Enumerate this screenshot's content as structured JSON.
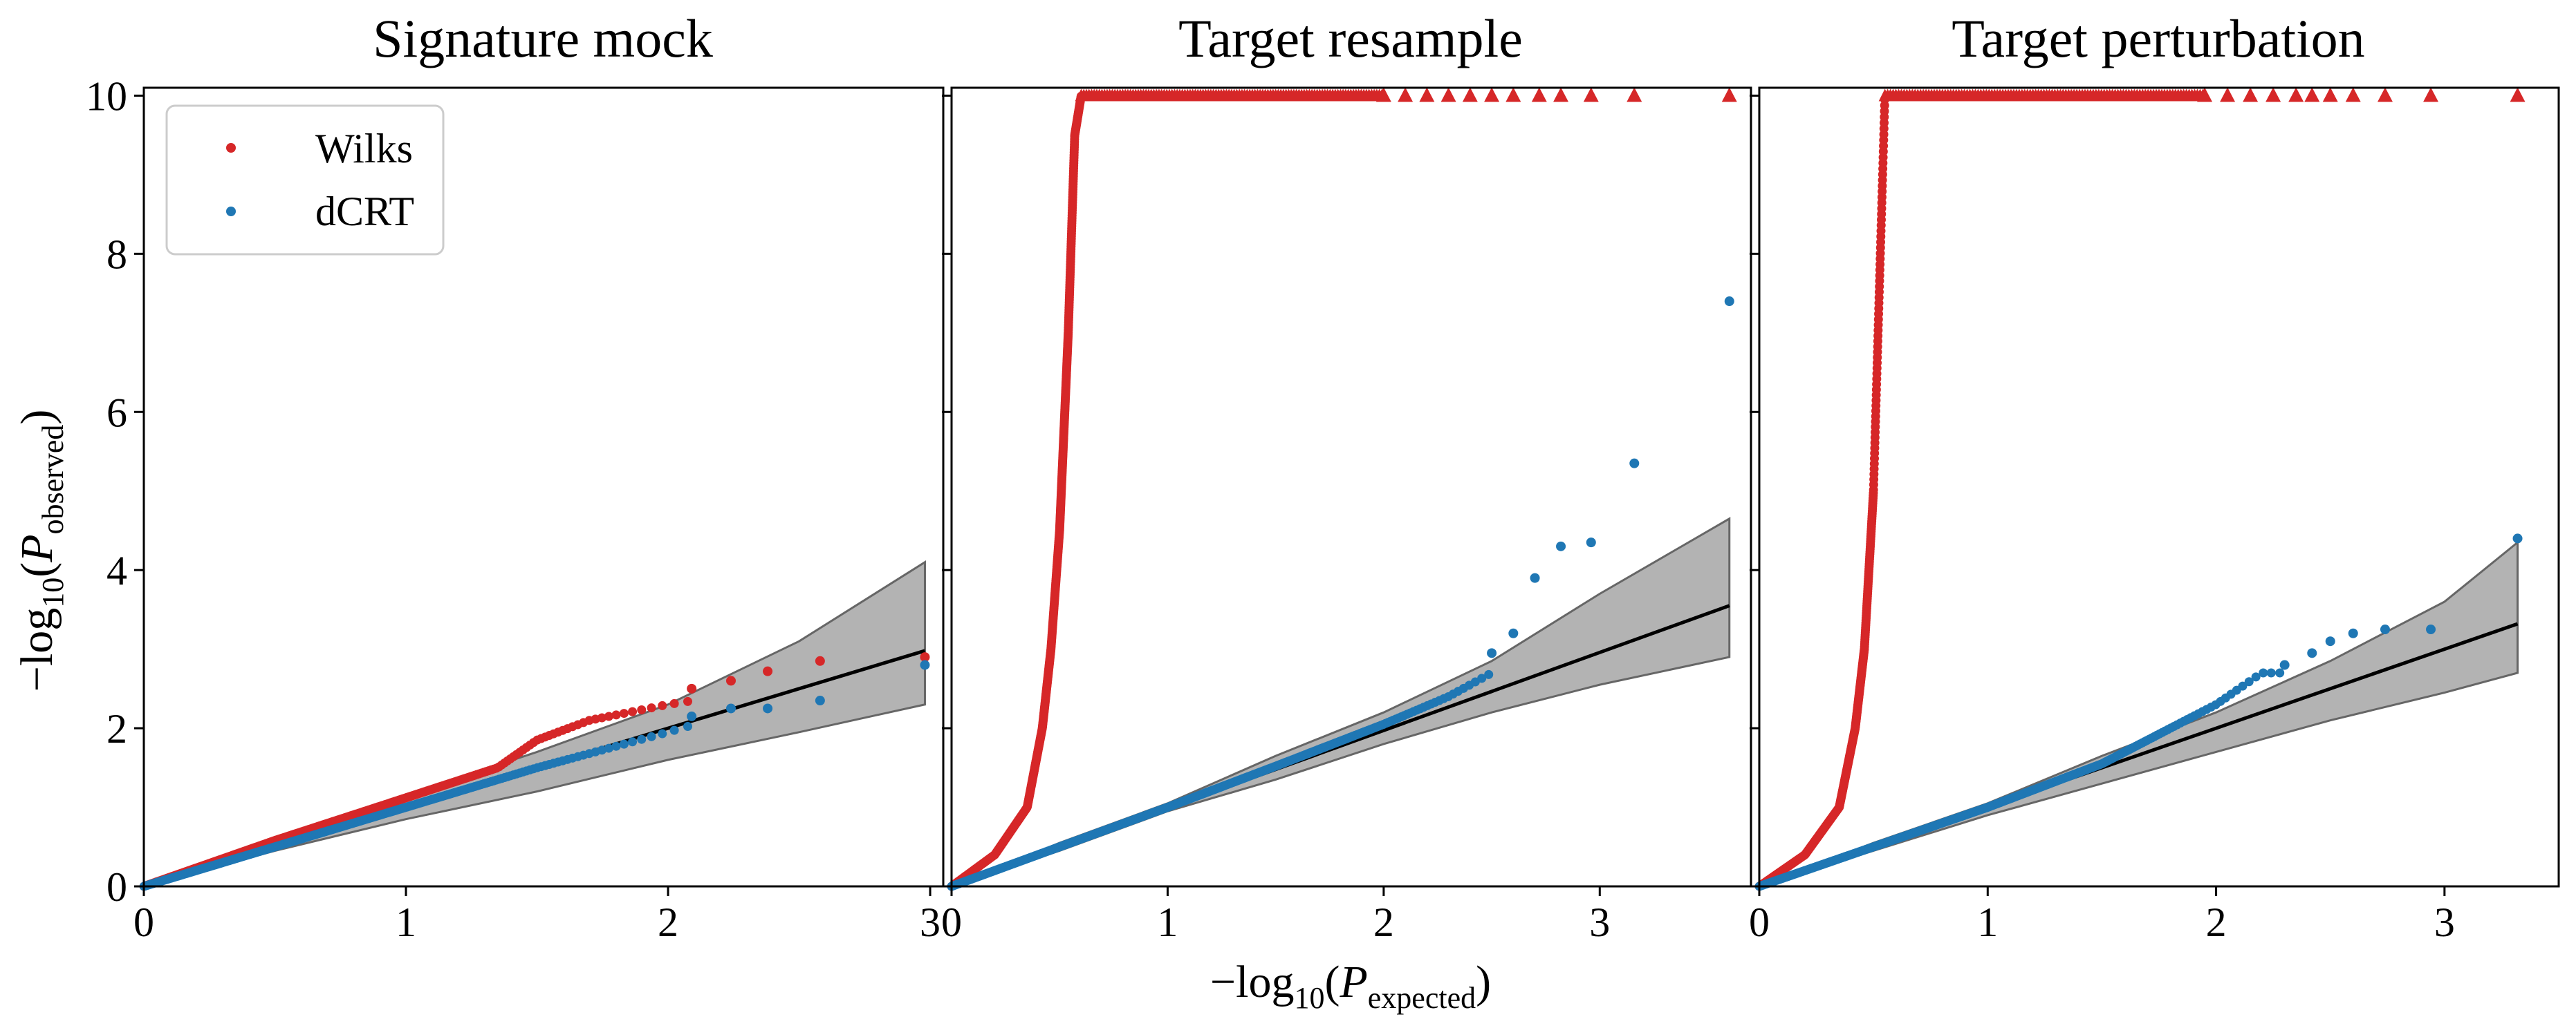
{
  "figure": {
    "ylabel": {
      "prefix": "−log",
      "sub": "10",
      "open": "(",
      "var": "P",
      "varsub": "observed",
      "close": ")"
    },
    "xlabel": {
      "prefix": "−log",
      "sub": "10",
      "open": "(",
      "var": "P",
      "varsub": "expected",
      "close": ")"
    },
    "legend": {
      "placement": "upper-left of first panel",
      "items": [
        {
          "label": "Wilks",
          "color": "#d62728"
        },
        {
          "label": "dCRT",
          "color": "#1f77b4"
        }
      ]
    },
    "colors": {
      "wilks": "#d62728",
      "dcrt": "#1f77b4",
      "band": "#808080",
      "reference_line": "#000000"
    }
  },
  "chart_data": [
    {
      "type": "scatter",
      "title": "Signature mock",
      "xlim": [
        0,
        3.05
      ],
      "ylim": [
        0,
        10.1
      ],
      "xticks": [
        "0",
        "1",
        "2",
        "3"
      ],
      "yticks": [
        "0",
        "2",
        "4",
        "6",
        "8",
        "10"
      ],
      "x_max": 2.98,
      "cap": 10,
      "n_points": 950,
      "band_upper": [
        [
          0,
          0
        ],
        [
          0.5,
          0.6
        ],
        [
          1.0,
          1.15
        ],
        [
          1.5,
          1.7
        ],
        [
          2.0,
          2.3
        ],
        [
          2.5,
          3.1
        ],
        [
          2.98,
          4.1
        ]
      ],
      "band_lower": [
        [
          0,
          0
        ],
        [
          0.5,
          0.45
        ],
        [
          1.0,
          0.85
        ],
        [
          1.5,
          1.2
        ],
        [
          2.0,
          1.6
        ],
        [
          2.5,
          1.95
        ],
        [
          2.98,
          2.3
        ]
      ],
      "line_end": [
        2.98,
        2.98
      ],
      "series": [
        {
          "name": "Wilks",
          "shape": [
            [
              0,
              0
            ],
            [
              0.5,
              0.58
            ],
            [
              1.0,
              1.12
            ],
            [
              1.35,
              1.5
            ],
            [
              1.5,
              1.85
            ],
            [
              1.7,
              2.1
            ],
            [
              2.0,
              2.3
            ],
            [
              2.98,
              2.8
            ]
          ],
          "tail": [
            [
              2.09,
              2.5
            ],
            [
              2.24,
              2.6
            ],
            [
              2.38,
              2.72
            ],
            [
              2.58,
              2.85
            ],
            [
              2.98,
              2.9
            ]
          ]
        },
        {
          "name": "dCRT",
          "shape": [
            [
              0,
              0
            ],
            [
              0.5,
              0.5
            ],
            [
              1.0,
              1.0
            ],
            [
              1.5,
              1.5
            ],
            [
              2.0,
              1.95
            ],
            [
              2.98,
              2.9
            ]
          ],
          "tail": [
            [
              2.09,
              2.15
            ],
            [
              2.24,
              2.25
            ],
            [
              2.38,
              2.25
            ],
            [
              2.58,
              2.35
            ],
            [
              2.98,
              2.8
            ]
          ]
        }
      ]
    },
    {
      "type": "scatter",
      "title": "Target resample",
      "xlim": [
        0,
        3.7
      ],
      "ylim": [
        0,
        10.1
      ],
      "xticks": [
        "0",
        "1",
        "2",
        "3"
      ],
      "yticks": [
        "0",
        "2",
        "4",
        "6",
        "8",
        "10"
      ],
      "x_max": 3.6,
      "cap": 10,
      "n_points": 3980,
      "band_upper": [
        [
          0,
          0
        ],
        [
          0.5,
          0.55
        ],
        [
          1.0,
          1.05
        ],
        [
          1.5,
          1.65
        ],
        [
          2.0,
          2.2
        ],
        [
          2.5,
          2.85
        ],
        [
          3.0,
          3.7
        ],
        [
          3.6,
          4.65
        ]
      ],
      "band_lower": [
        [
          0,
          0
        ],
        [
          0.5,
          0.45
        ],
        [
          1.0,
          0.95
        ],
        [
          1.5,
          1.35
        ],
        [
          2.0,
          1.8
        ],
        [
          2.5,
          2.2
        ],
        [
          3.0,
          2.55
        ],
        [
          3.6,
          2.9
        ]
      ],
      "line_end": [
        3.6,
        3.55
      ],
      "series": [
        {
          "name": "Wilks",
          "shape": [
            [
              0,
              0
            ],
            [
              0.2,
              0.4
            ],
            [
              0.35,
              1.0
            ],
            [
              0.42,
              2.0
            ],
            [
              0.46,
              3.0
            ],
            [
              0.5,
              4.5
            ],
            [
              0.54,
              7.0
            ],
            [
              0.57,
              9.5
            ],
            [
              0.6,
              10.0
            ],
            [
              3.6,
              10.0
            ]
          ],
          "capped_markers_x": [
            2.0,
            2.1,
            2.2,
            2.3,
            2.4,
            2.5,
            2.6,
            2.72,
            2.82,
            2.96,
            3.16,
            3.6
          ]
        },
        {
          "name": "dCRT",
          "shape": [
            [
              0,
              0
            ],
            [
              1.0,
              1.0
            ],
            [
              1.5,
              1.52
            ],
            [
              2.0,
              2.05
            ],
            [
              2.3,
              2.4
            ],
            [
              2.6,
              2.85
            ]
          ],
          "tail": [
            [
              2.5,
              2.95
            ],
            [
              2.6,
              3.2
            ],
            [
              2.7,
              3.9
            ],
            [
              2.82,
              4.3
            ],
            [
              2.96,
              4.35
            ],
            [
              3.16,
              5.35
            ],
            [
              3.6,
              7.4
            ]
          ]
        }
      ]
    },
    {
      "type": "scatter",
      "title": "Target perturbation",
      "xlim": [
        0,
        3.5
      ],
      "ylim": [
        0,
        10.1
      ],
      "xticks": [
        "0",
        "1",
        "2",
        "3"
      ],
      "yticks": [
        "0",
        "2",
        "4",
        "6",
        "8",
        "10"
      ],
      "x_max": 3.32,
      "cap": 10,
      "n_points": 2090,
      "band_upper": [
        [
          0,
          0
        ],
        [
          0.5,
          0.55
        ],
        [
          1.0,
          1.05
        ],
        [
          1.5,
          1.65
        ],
        [
          2.0,
          2.2
        ],
        [
          2.5,
          2.85
        ],
        [
          3.0,
          3.6
        ],
        [
          3.32,
          4.35
        ]
      ],
      "band_lower": [
        [
          0,
          0
        ],
        [
          0.5,
          0.45
        ],
        [
          1.0,
          0.9
        ],
        [
          1.5,
          1.3
        ],
        [
          2.0,
          1.7
        ],
        [
          2.5,
          2.1
        ],
        [
          3.0,
          2.45
        ],
        [
          3.32,
          2.7
        ]
      ],
      "line_end": [
        3.32,
        3.32
      ],
      "series": [
        {
          "name": "Wilks",
          "shape": [
            [
              0,
              0
            ],
            [
              0.2,
              0.4
            ],
            [
              0.35,
              1.0
            ],
            [
              0.42,
              2.0
            ],
            [
              0.46,
              3.0
            ],
            [
              0.5,
              5.0
            ],
            [
              0.53,
              8.0
            ],
            [
              0.55,
              10.0
            ],
            [
              3.32,
              10.0
            ]
          ],
          "capped_markers_x": [
            1.95,
            2.05,
            2.15,
            2.25,
            2.35,
            2.42,
            2.5,
            2.6,
            2.74,
            2.94,
            3.32
          ]
        },
        {
          "name": "dCRT",
          "shape": [
            [
              0,
              0
            ],
            [
              1.0,
              1.0
            ],
            [
              1.5,
              1.55
            ],
            [
              1.8,
              2.0
            ],
            [
              2.0,
              2.3
            ],
            [
              2.2,
              2.7
            ]
          ],
          "tail": [
            [
              2.3,
              2.8
            ],
            [
              2.42,
              2.95
            ],
            [
              2.5,
              3.1
            ],
            [
              2.6,
              3.2
            ],
            [
              2.74,
              3.25
            ],
            [
              2.94,
              3.25
            ],
            [
              3.32,
              4.4
            ]
          ]
        }
      ]
    }
  ]
}
